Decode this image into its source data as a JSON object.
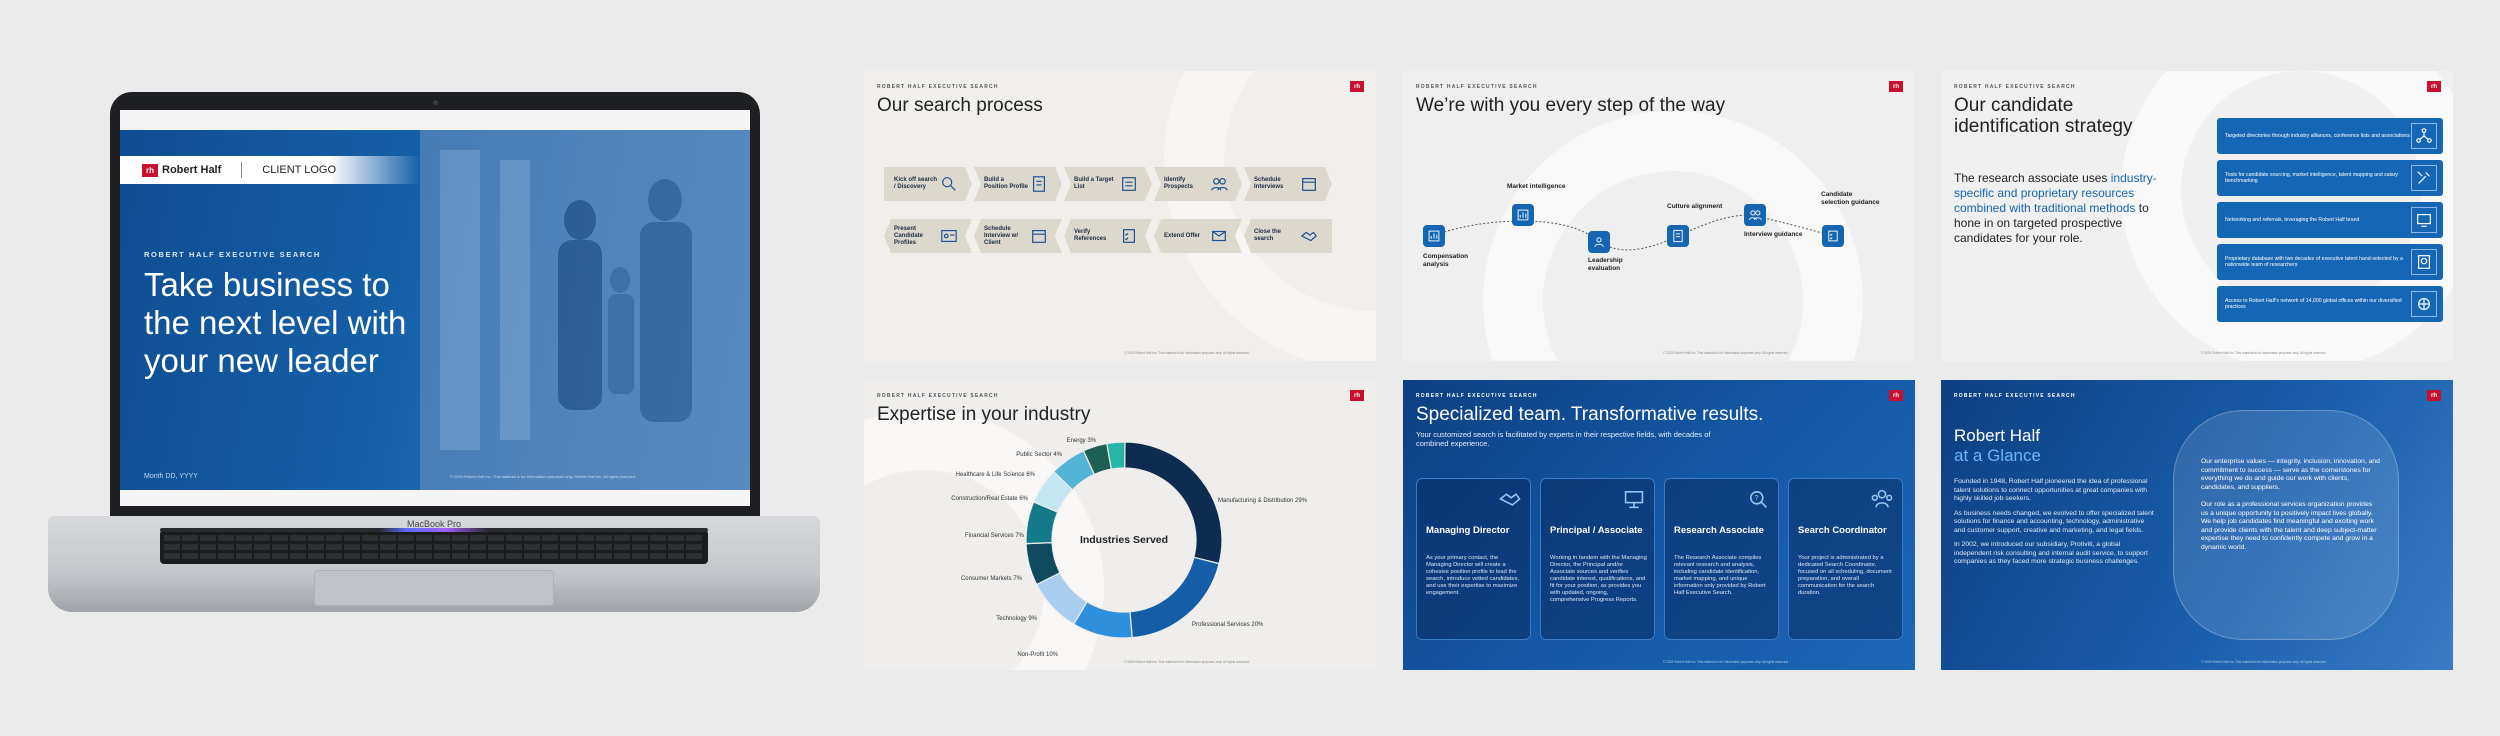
{
  "hero": {
    "brand": "Robert Half",
    "client_logo": "CLIENT LOGO",
    "eyebrow": "ROBERT HALF EXECUTIVE SEARCH",
    "title": "Take business to the next level with your new leader",
    "date": "Month DD, YYYY",
    "footnote": "© 2024 Robert Half Inc. This material is for information purposes only. Robert Half Inc. All rights reserved."
  },
  "laptop": {
    "model": "MacBook Pro"
  },
  "common": {
    "eyebrow": "ROBERT HALF EXECUTIVE SEARCH",
    "rh": "rh",
    "footnote": "© 2024 Robert Half Inc. This material is for information purposes only. All rights reserved."
  },
  "search_process": {
    "title": "Our search process",
    "row1": [
      {
        "label": "Kick off search / Discovery",
        "icon": "magnifier-icon"
      },
      {
        "label": "Build a Position Profile",
        "icon": "document-icon"
      },
      {
        "label": "Build a Target List",
        "icon": "list-icon"
      },
      {
        "label": "Identify Prospects",
        "icon": "people-icon"
      },
      {
        "label": "Schedule Interviews",
        "icon": "calendar-icon"
      }
    ],
    "row2": [
      {
        "label": "Present Candidate Profiles",
        "icon": "id-card-icon"
      },
      {
        "label": "Schedule Interview w/ Client",
        "icon": "calendar-icon"
      },
      {
        "label": "Verify References",
        "icon": "checklist-icon"
      },
      {
        "label": "Extend Offer",
        "icon": "offer-icon"
      },
      {
        "label": "Close the search",
        "icon": "handshake-icon"
      }
    ]
  },
  "steps": {
    "title": "We’re with you every step of the way",
    "items": [
      {
        "label": "Compensation analysis"
      },
      {
        "label": "Market intelligence"
      },
      {
        "label": "Leadership evaluation"
      },
      {
        "label": "Culture alignment"
      },
      {
        "label": "Interview guidance"
      },
      {
        "label": "Candidate selection guidance"
      }
    ]
  },
  "candidate": {
    "title": "Our candidate identification strategy",
    "body_pre": "The research associate uses ",
    "body_highlight": "industry-specific and proprietary resources combined with traditional methods",
    "body_post": " to hone in on targeted prospective candidates for your role.",
    "boxes": [
      {
        "text": "Targeted directories through industry alliances, conference lists and associations",
        "icon": "network-icon"
      },
      {
        "text": "Tools for candidate sourcing, market intelligence, talent mapping and salary benchmarking",
        "icon": "tools-icon"
      },
      {
        "text": "Networking and referrals, leveraging the Robert Half brand",
        "icon": "referral-icon"
      },
      {
        "text": "Proprietary database with two decades of executive talent hand-selected by a nationwide team of researchers",
        "icon": "database-icon"
      },
      {
        "text": "Access to Robert Half’s network of 14,000 global offices within our diversified practices",
        "icon": "globe-network-icon"
      }
    ]
  },
  "industry": {
    "title": "Expertise in your industry",
    "center": "Industries Served",
    "legend": [
      {
        "label": "Manufacturing & Distribution 29%"
      },
      {
        "label": "Professional Services 20%"
      },
      {
        "label": "Non-Profit 10%"
      },
      {
        "label": "Technology 9%"
      },
      {
        "label": "Consumer Markets 7%"
      },
      {
        "label": "Financial Services 7%"
      },
      {
        "label": "Construction/Real Estate 6%"
      },
      {
        "label": "Healthcare & Life Science 6%"
      },
      {
        "label": "Public Sector 4%"
      },
      {
        "label": "Energy 3%"
      }
    ]
  },
  "chart_data": {
    "type": "pie",
    "categories": [
      "Manufacturing & Distribution",
      "Professional Services",
      "Non-Profit",
      "Technology",
      "Consumer Markets",
      "Financial Services",
      "Construction/Real Estate",
      "Healthcare & Life Science",
      "Public Sector",
      "Energy"
    ],
    "values": [
      29,
      20,
      10,
      9,
      7,
      7,
      6,
      6,
      4,
      3
    ],
    "title": "Expertise in your industry",
    "colors": [
      "#0d2c4f",
      "#145ea8",
      "#2e8fdc",
      "#a8cdee",
      "#0f4a5e",
      "#137a8a",
      "#c4e6f2",
      "#53b4d6",
      "#1d5e55",
      "#27b3a6"
    ]
  },
  "team": {
    "title": "Specialized team. Transformative results.",
    "subtitle": "Your customized search is facilitated by experts in their respective fields, with decades of combined experience.",
    "cards": [
      {
        "name": "Managing Director",
        "icon": "handshake-icon",
        "desc": "As your primary contact, the Managing Director will create a cohesive position profile to lead the search, introduce vetted candidates, and use their expertise to maximize engagement."
      },
      {
        "name": "Principal / Associate",
        "icon": "presentation-icon",
        "desc": "Working in tandem with the Managing Director, the Principal and/or Associate sources and verifies candidate interest, qualifications, and fit for your position, as provides you with updated, ongoing, comprehensive Progress Reports."
      },
      {
        "name": "Research Associate",
        "icon": "research-icon",
        "desc": "The Research Associate compiles relevant research and analysis, including candidate identification, market mapping, and unique information only provided by Robert Half Executive Search."
      },
      {
        "name": "Search Coordinator",
        "icon": "team-icon",
        "desc": "Your project is administrated by a dedicated Search Coordinator, focused on all scheduling, document preparation, and overall communication for the search duration."
      }
    ]
  },
  "glance": {
    "title_line1": "Robert Half",
    "title_line2": "at a Glance",
    "left": [
      "Founded in 1948, Robert Half pioneered the idea of professional talent solutions to connect opportunities at great companies with highly skilled job seekers.",
      "As business needs changed, we evolved to offer specialized talent solutions for finance and accounting, technology, administrative and customer support, creative and marketing, and legal fields.",
      "In 2002, we introduced our subsidiary, Protiviti, a global independent risk consulting and internal audit service, to support companies as they faced more strategic business challenges."
    ],
    "right": [
      "Our enterprise values — integrity, inclusion, innovation, and commitment to success — serve as the cornerstones for everything we do and guide our work with clients, candidates, and suppliers.",
      "Our role as a professional services organization provides us a unique opportunity to positively impact lives globally. We help job candidates find meaningful and exciting work and provide clients with the talent and deep subject-matter expertise they need to confidently compete and grow in a dynamic world."
    ]
  }
}
